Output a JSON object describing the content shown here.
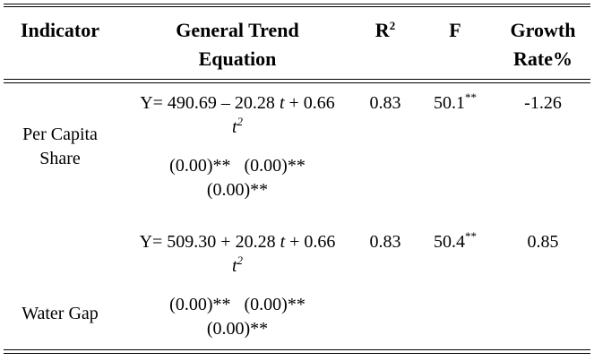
{
  "header": [
    [
      {
        "text": "Indicator"
      }
    ],
    [
      {
        "text": "General Trend Equation"
      }
    ],
    [
      {
        "text": "R"
      },
      {
        "text": "2",
        "sup": true
      }
    ],
    [
      {
        "text": "F"
      }
    ],
    [
      {
        "text": "Growth Rate%"
      }
    ]
  ],
  "rows": [
    {
      "indicator": "Per Capita Share",
      "equation": [
        {
          "text": "Y= 490.69 – 20.28 "
        },
        {
          "text": "t",
          "italic": true
        },
        {
          "text": " + 0.66 "
        },
        {
          "text": "t",
          "italic": true
        },
        {
          "text": "2",
          "sup": true,
          "italic": true
        }
      ],
      "significance": "(0.00)**   (0.00)**   (0.00)**",
      "r2": "0.83",
      "f": [
        {
          "text": "50.1"
        },
        {
          "text": "**",
          "sup": true
        }
      ],
      "growth": "-1.26"
    },
    {
      "indicator": "Water Gap",
      "equation": [
        {
          "text": "Y= 509.30 + 20.28 "
        },
        {
          "text": "t",
          "italic": true
        },
        {
          "text": " + 0.66 "
        },
        {
          "text": "t",
          "italic": true
        },
        {
          "text": "2",
          "sup": true,
          "italic": true
        }
      ],
      "significance": "(0.00)**   (0.00)**   (0.00)**",
      "r2": "0.83",
      "f": [
        {
          "text": "50.4"
        },
        {
          "text": "**",
          "sup": true
        }
      ],
      "growth": "0.85"
    }
  ]
}
